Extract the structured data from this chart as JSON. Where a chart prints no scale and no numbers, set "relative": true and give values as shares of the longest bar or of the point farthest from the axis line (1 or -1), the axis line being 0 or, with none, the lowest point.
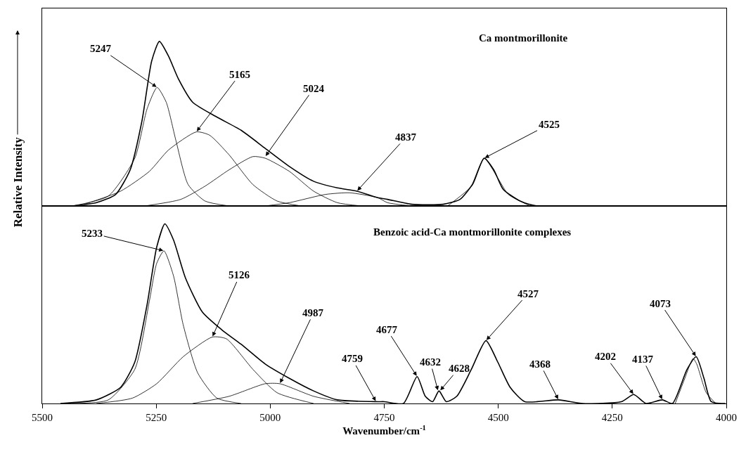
{
  "chart_data": [
    {
      "type": "line",
      "relative": true,
      "title": "Ca montmorillonite",
      "xlim": [
        5500,
        4000
      ],
      "grid": false,
      "series": [
        {
          "color": "#000000",
          "x": [
            5434,
            5381,
            5339,
            5307,
            5281,
            5260,
            5243,
            5223,
            5201,
            5170,
            5117,
            5064,
            5011,
            4958,
            4905,
            4853,
            4810,
            4764,
            4743,
            4690,
            4621,
            4584,
            4557,
            4531,
            4510,
            4489,
            4452,
            4415,
            4008
          ],
          "values": [
            0,
            0.02,
            0.07,
            0.22,
            0.52,
            0.88,
            1.0,
            0.91,
            0.77,
            0.63,
            0.54,
            0.46,
            0.35,
            0.24,
            0.15,
            0.11,
            0.09,
            0.05,
            0.04,
            0.01,
            0.01,
            0.04,
            0.13,
            0.29,
            0.22,
            0.1,
            0.03,
            0,
            0
          ]
        },
        {
          "color": "#000000",
          "x": [
            5434,
            5355,
            5297,
            5270,
            5248,
            5228,
            5207,
            5180,
            5143,
            5090
          ],
          "values": [
            0,
            0.06,
            0.29,
            0.59,
            0.72,
            0.63,
            0.4,
            0.13,
            0.03,
            0
          ]
        },
        {
          "color": "#000000",
          "x": [
            5408,
            5328,
            5265,
            5223,
            5162,
            5133,
            5090,
            5038,
            4985,
            4932
          ],
          "values": [
            0.01,
            0.09,
            0.21,
            0.34,
            0.45,
            0.43,
            0.31,
            0.13,
            0.03,
            0
          ]
        },
        {
          "color": "#000000",
          "x": [
            5275,
            5196,
            5143,
            5090,
            5038,
            5011,
            4958,
            4905,
            4853,
            4800
          ],
          "values": [
            0,
            0.04,
            0.12,
            0.22,
            0.3,
            0.29,
            0.21,
            0.09,
            0.02,
            0
          ]
        },
        {
          "color": "#000000",
          "x": [
            5011,
            4958,
            4879,
            4826,
            4764,
            4743,
            4690
          ],
          "values": [
            0,
            0.02,
            0.07,
            0.08,
            0.05,
            0.02,
            0
          ]
        },
        {
          "color": "#000000",
          "x": [
            4611,
            4557,
            4531,
            4499,
            4478,
            4430
          ],
          "values": [
            0,
            0.125,
            0.29,
            0.16,
            0.07,
            0
          ]
        }
      ],
      "annotations": [
        {
          "text": "5247",
          "x": 5248,
          "y": 0.72
        },
        {
          "text": "5165",
          "x": 5162,
          "y": 0.45
        },
        {
          "text": "5024",
          "x": 5011,
          "y": 0.3
        },
        {
          "text": "4837",
          "x": 4810,
          "y": 0.09
        },
        {
          "text": "4525",
          "x": 4531,
          "y": 0.29
        }
      ]
    },
    {
      "type": "line",
      "relative": true,
      "title": "Benzoic acid-Ca montmorillonite complexes",
      "xlim": [
        5500,
        4000
      ],
      "xticks": [
        5500,
        5250,
        5000,
        4750,
        4500,
        4250,
        4000
      ],
      "xlabel": "Wavenumber/cm$^{-1}$",
      "ylabel": "Relative Intensity",
      "grid": false,
      "series": [
        {
          "color": "#000000",
          "x": [
            5460,
            5381,
            5328,
            5297,
            5270,
            5249,
            5231,
            5212,
            5186,
            5149,
            5106,
            5064,
            5011,
            4958,
            4905,
            4853,
            4764,
            4750,
            4708,
            4678,
            4660,
            4644,
            4630,
            4614,
            4591,
            4559,
            4527,
            4501,
            4474,
            4442,
            4368,
            4315,
            4230,
            4203,
            4176,
            4140,
            4118,
            4086,
            4066,
            4049,
            4033,
            4002
          ],
          "values": [
            0,
            0.02,
            0.09,
            0.23,
            0.55,
            0.87,
            1.0,
            0.91,
            0.7,
            0.51,
            0.41,
            0.33,
            0.22,
            0.14,
            0.07,
            0.02,
            0.01,
            0.01,
            0,
            0.15,
            0.04,
            0.01,
            0.07,
            0.01,
            0.04,
            0.19,
            0.35,
            0.23,
            0.09,
            0.01,
            0.02,
            0,
            0.01,
            0.05,
            0,
            0.02,
            0,
            0.19,
            0.26,
            0.14,
            0.01,
            0
          ]
        },
        {
          "color": "#000000",
          "x": [
            5434,
            5355,
            5297,
            5265,
            5249,
            5233,
            5212,
            5191,
            5159,
            5117,
            5064
          ],
          "values": [
            0,
            0.02,
            0.19,
            0.57,
            0.78,
            0.85,
            0.71,
            0.44,
            0.17,
            0.03,
            0
          ]
        },
        {
          "color": "#000000",
          "x": [
            5381,
            5302,
            5249,
            5191,
            5127,
            5096,
            5038,
            4985,
            4905
          ],
          "values": [
            0,
            0.03,
            0.11,
            0.26,
            0.37,
            0.36,
            0.19,
            0.06,
            0
          ]
        },
        {
          "color": "#000000",
          "x": [
            5170,
            5090,
            5011,
            4979,
            4905,
            4826
          ],
          "values": [
            0,
            0.04,
            0.11,
            0.11,
            0.04,
            0
          ]
        },
        {
          "color": "#000000",
          "x": [
            4112,
            4091,
            4073,
            4065,
            4044,
            4023
          ],
          "values": [
            0,
            0.14,
            0.25,
            0.22,
            0.06,
            0
          ]
        }
      ],
      "annotations": [
        {
          "text": "5233",
          "x": 5233,
          "y": 0.85
        },
        {
          "text": "5126",
          "x": 5127,
          "y": 0.37
        },
        {
          "text": "4987",
          "x": 4979,
          "y": 0.11
        },
        {
          "text": "4759",
          "x": 4768,
          "y": 0.01
        },
        {
          "text": "4677",
          "x": 4678,
          "y": 0.15
        },
        {
          "text": "4632",
          "x": 4632,
          "y": 0.07
        },
        {
          "text": "4628",
          "x": 4628,
          "y": 0.07
        },
        {
          "text": "4527",
          "x": 4527,
          "y": 0.35
        },
        {
          "text": "4368",
          "x": 4368,
          "y": 0.02
        },
        {
          "text": "4202",
          "x": 4203,
          "y": 0.05
        },
        {
          "text": "4137",
          "x": 4140,
          "y": 0.02
        },
        {
          "text": "4073",
          "x": 4066,
          "y": 0.26
        }
      ]
    }
  ]
}
